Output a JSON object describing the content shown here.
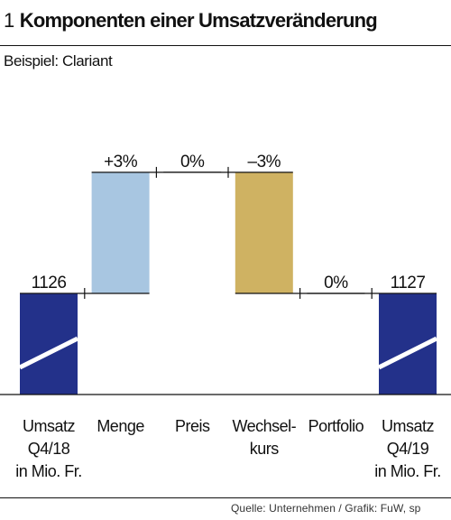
{
  "header": {
    "figure_number": "1",
    "title": "Komponenten einer Umsatzveränderung",
    "subtitle": "Beispiel: Clariant"
  },
  "footer": {
    "source": "Quelle: Unternehmen / Grafik: FuW, sp"
  },
  "colors": {
    "total": "#23318a",
    "positive": "#a8c6e1",
    "negative": "#cfb262",
    "neutral": "#111111"
  },
  "chart_data": {
    "type": "bar",
    "subtype": "waterfall",
    "unit": "Mio. Fr.",
    "steps": [
      {
        "name": "umsatz-q418",
        "category": [
          "Umsatz",
          "Q4/18",
          "in Mio. Fr."
        ],
        "kind": "total",
        "value": 1126,
        "label": "1126"
      },
      {
        "name": "menge",
        "category": [
          "Menge"
        ],
        "kind": "delta",
        "percent": 3,
        "label": "+3%"
      },
      {
        "name": "preis",
        "category": [
          "Preis"
        ],
        "kind": "delta",
        "percent": 0,
        "label": "0%"
      },
      {
        "name": "wechselkurs",
        "category": [
          "Wechsel-",
          "kurs"
        ],
        "kind": "delta",
        "percent": -3,
        "label": "–3%"
      },
      {
        "name": "portfolio",
        "category": [
          "Portfolio"
        ],
        "kind": "delta",
        "percent": 0,
        "label": "0%"
      },
      {
        "name": "umsatz-q419",
        "category": [
          "Umsatz",
          "Q4/19",
          "in Mio. Fr."
        ],
        "kind": "total",
        "value": 1127,
        "label": "1127"
      }
    ]
  }
}
